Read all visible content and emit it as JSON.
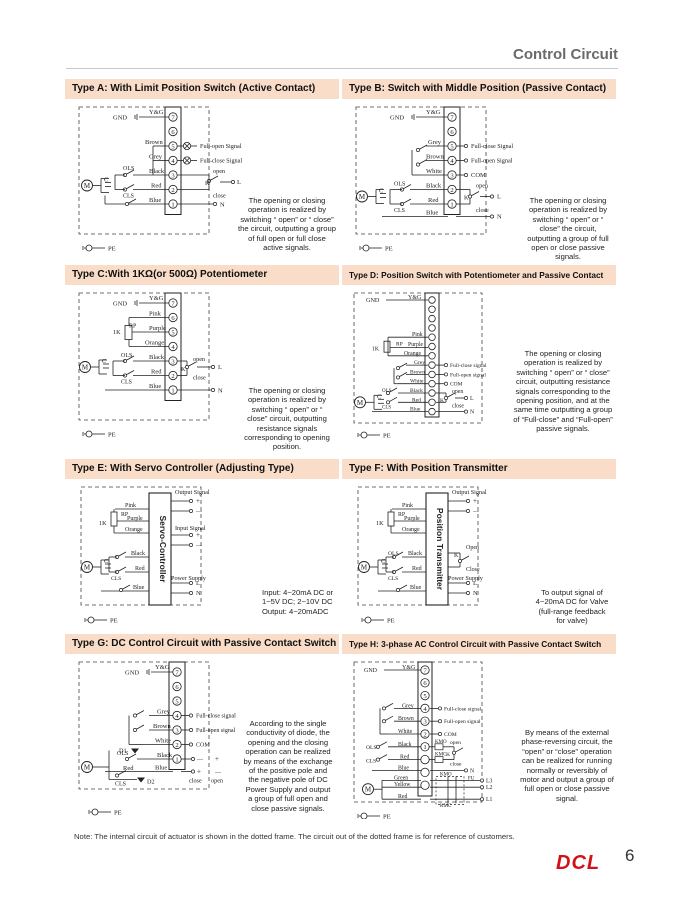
{
  "page": {
    "title": "Control Circuit",
    "number": "6",
    "logo_text": "DCL",
    "note": "Note: The internal circuit of actuator is shown in the dotted frame.  The circuit out of the dotted frame is for reference of customers."
  },
  "sections": [
    {
      "id": "A",
      "heading": "Type A: With Limit Position Switch (Active Contact)",
      "description": "The opening or closing operation is realized by switching “ open”  or “ close”  the circuit, outputting a group of full open or full close active signals.",
      "terminals": [
        "7",
        "6",
        "5",
        "4",
        "3",
        "2",
        "1"
      ],
      "labels": {
        "gnd": "GND",
        "yg": "Y&G",
        "brown": "Brown",
        "grey": "Grey",
        "black": "Black",
        "red": "Red",
        "blue": "Blue",
        "ols": "OLS",
        "cls": "CLS",
        "m": "M",
        "c": "C",
        "open": "open",
        "close": "close",
        "k": "K",
        "l": "L",
        "n": "N",
        "pe": "PE",
        "sig1": "Full-open Signal",
        "sig2": "Full-close Signal"
      }
    },
    {
      "id": "B",
      "heading": "Type B: Switch with Middle Position (Passive Contact)",
      "description": "The opening or closing operation is realized by switching “ open”  or “ close”  the circuit, outputting a group of full open or close passive signals.",
      "terminals": [
        "7",
        "6",
        "5",
        "4",
        "3",
        "2",
        "1"
      ],
      "labels": {
        "gnd": "GND",
        "yg": "Y&G",
        "grey": "Grey",
        "brown": "Brown",
        "white": "White",
        "black": "Black",
        "red": "Red",
        "blue": "Blue",
        "ols": "OLS",
        "cls": "CLS",
        "m": "M",
        "c": "C",
        "open": "open",
        "close": "close",
        "k": "K",
        "l": "L",
        "n": "N",
        "pe": "PE",
        "sig1": "Full-close Signal",
        "sig2": "Full-open Signal",
        "com": "COM"
      }
    },
    {
      "id": "C",
      "heading": "Type C:With 1KΩ(or 500Ω) Potentiometer",
      "description": "The opening or closing operation is realized by switching “ open”  or “ close”  circuit, outputting resistance signals corresponding to opening position.",
      "terminals": [
        "7",
        "6",
        "5",
        "4",
        "3",
        "2",
        "1"
      ],
      "labels": {
        "gnd": "GND",
        "yg": "Y&G",
        "pink": "Pink",
        "rp": "RP",
        "purple": "Purple",
        "k1": "1K",
        "orange": "Orange",
        "black": "Black",
        "red": "Red",
        "blue": "Blue",
        "ols": "OLS",
        "cls": "CLS",
        "m": "M",
        "c": "C",
        "open": "open",
        "close": "close",
        "k": "K",
        "l": "L",
        "n": "N",
        "pe": "PE"
      }
    },
    {
      "id": "D",
      "heading": "Type D: Position Switch with Potentiometer and Passive Contact",
      "description": "The opening or closing operation is realized by switching “ open”  or “ close”  circuit, outputting resistance signals corresponding to the opening position, and at the same time outputting a group of “Full-close” and “Full-open” passive signals.",
      "terminals": [
        "",
        "",
        "",
        "",
        "",
        "",
        "",
        "",
        "",
        "",
        "",
        "",
        ""
      ],
      "labels": {
        "gnd": "GND",
        "yg": "Y&G",
        "pink": "Pink",
        "rp": "RP",
        "purple": "Purple",
        "k1": "1K",
        "orange": "Orange",
        "grey": "Grey",
        "brown": "Brown",
        "white": "White",
        "black": "Black",
        "red": "Red",
        "blue": "Blue",
        "ols": "OLS",
        "cls": "CLS",
        "m": "M",
        "c": "C",
        "open": "open",
        "close": "close",
        "k": "K",
        "l": "L",
        "n": "N",
        "pe": "PE",
        "sig1": "Full-close signal",
        "sig2": "Full-open signal",
        "com": "COM"
      }
    },
    {
      "id": "E",
      "heading": "Type E: With Servo Controller (Adjusting Type)",
      "description": "Input: 4~20mA DC or 1~5V DC; 2~10V DC Output: 4~20mADC",
      "box_label": "Servo-Controller",
      "labels": {
        "pink": "Pink",
        "rp": "RP",
        "purple": "Purple",
        "k1": "1K",
        "orange": "Orange",
        "black": "Black",
        "red": "Red",
        "blue": "Blue",
        "cls": "CLS",
        "m": "M",
        "c": "C",
        "l": "L",
        "n": "N",
        "pe": "PE",
        "output": "Output Signal",
        "input": "Input Signal",
        "power": "Power Supply",
        "plus": "+",
        "minus": "—"
      }
    },
    {
      "id": "F",
      "heading": "Type F: With Position Transmitter",
      "description": "To output signal of 4~20mA DC for Valve (full-range feedback for valve)",
      "box_label": "Position Transmitter",
      "labels": {
        "pink": "Pink",
        "rp": "RP",
        "purple": "Purple",
        "k1": "1K",
        "orange": "Orange",
        "black": "Black",
        "red": "Red",
        "blue": "Blue",
        "ols": "OLS",
        "cls": "CLS",
        "m": "M",
        "c": "C",
        "open": "Open",
        "close": "Close",
        "k": "K",
        "l": "L",
        "n": "N",
        "pe": "PE",
        "output": "Output Signal",
        "power": "Power Supply",
        "plus": "+",
        "minus": "—"
      }
    },
    {
      "id": "G",
      "heading": "Type G: DC Control Circuit with Passive Contact Switch",
      "description": "According to the single conductivity of diode, the opening and the closing operation can be realized by means of the exchange of the positive pole and the negative pole of DC Power Supply and output a group of full open and close passive signals.",
      "terminals": [
        "7",
        "6",
        "5",
        "4",
        "3",
        "2",
        "1"
      ],
      "labels": {
        "gnd": "GND",
        "yg": "Y&G",
        "grey": "Grey",
        "brown": "Brown",
        "white": "White",
        "black": "Black",
        "red": "Red",
        "blue": "Blue",
        "ols": "OLS",
        "cls": "CLS",
        "m": "M",
        "d1": "D1",
        "d2": "D2",
        "close": "close",
        "open": "open",
        "pe": "PE",
        "sig1": "Full-close signal",
        "sig2": "Full-open signal",
        "com": "COM",
        "plus": "+",
        "minus": "—"
      }
    },
    {
      "id": "H",
      "heading": "Type H: 3-phase AC Control Circuit with Passive Contact Switch",
      "description": "By means of the external phase-reversing circuit, the “open” or “close” operation can be realized for running normally or reversibly of motor and output a group of full open or close passive signal.",
      "terminals": [
        "7",
        "6",
        "5",
        "4",
        "3",
        "2",
        "1",
        "",
        "",
        ""
      ],
      "labels": {
        "gnd": "GND",
        "yg": "Y&G",
        "grey": "Grey",
        "brown": "Brown",
        "white": "White",
        "black": "Black",
        "red": "Red",
        "blue": "Blue",
        "green": "Green",
        "yellow": "Yellow",
        "ols": "OLS",
        "cls": "CLS",
        "m": "M",
        "kmo": "KMO",
        "kmc": "KMC",
        "open": "open",
        "close": "close",
        "k": "K",
        "n": "N",
        "fu": "FU",
        "l1": "L1",
        "l2": "L2",
        "l3": "L3",
        "pe": "PE",
        "sig1": "Full-close signal",
        "sig2": "Full-open signal",
        "com": "COM"
      }
    }
  ]
}
